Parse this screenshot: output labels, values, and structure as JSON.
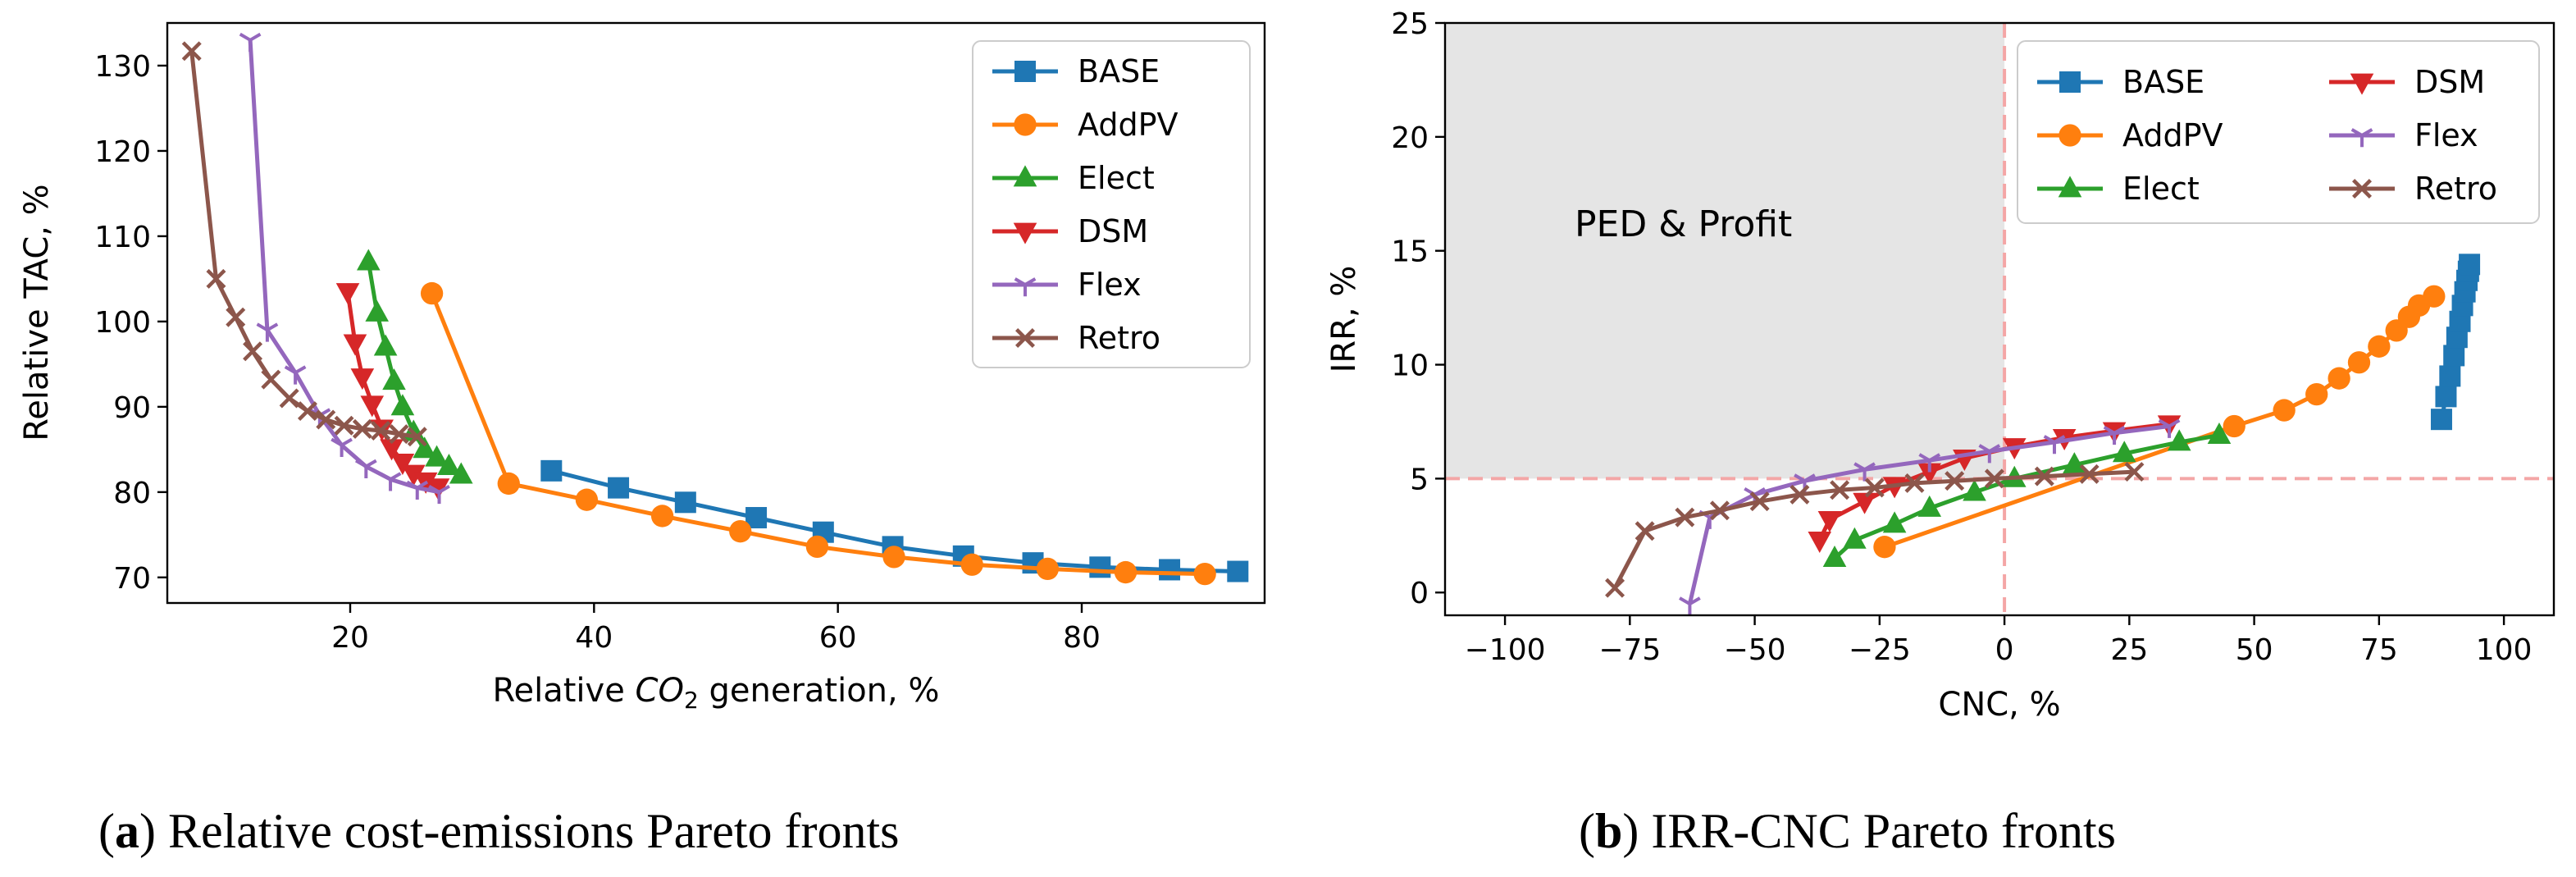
{
  "colors": {
    "BASE": "#1f77b4",
    "AddPV": "#ff7f0e",
    "Elect": "#2ca02c",
    "DSM": "#d62728",
    "Flex": "#9467bd",
    "Retro": "#8c564b",
    "region_fill": "#e5e5e5",
    "threshold_line": "#f4a6a6"
  },
  "chart_data": [
    {
      "id": "a",
      "type": "line",
      "caption_label": "a",
      "caption_text": "Relative cost-emissions Pareto fronts",
      "xlabel_prefix": "Relative ",
      "xlabel_co": "CO",
      "xlabel_sub": "2",
      "xlabel_suffix": " generation, %",
      "ylabel": "Relative TAC, %",
      "xlim": [
        5,
        95
      ],
      "ylim": [
        67,
        135
      ],
      "xticks": [
        20,
        40,
        60,
        80
      ],
      "yticks": [
        70,
        80,
        90,
        100,
        110,
        120,
        130
      ],
      "legend_position": "top-right",
      "series": [
        {
          "name": "BASE",
          "marker": "square",
          "x": [
            36.5,
            42,
            47.5,
            53.3,
            58.8,
            64.5,
            70.3,
            76,
            81.5,
            87.2,
            92.8
          ],
          "y": [
            82.5,
            80.5,
            78.8,
            77,
            75.3,
            73.6,
            72.5,
            71.7,
            71.2,
            70.9,
            70.7
          ]
        },
        {
          "name": "AddPV",
          "marker": "circle",
          "x": [
            26.7,
            33,
            39.4,
            45.6,
            52,
            58.3,
            64.6,
            71,
            77.2,
            83.6,
            90.1
          ],
          "y": [
            103.3,
            81,
            79.1,
            77.2,
            75.4,
            73.6,
            72.4,
            71.5,
            71,
            70.6,
            70.4
          ]
        },
        {
          "name": "Elect",
          "marker": "triangle-up",
          "x": [
            21.5,
            22.2,
            22.9,
            23.6,
            24.3,
            25.2,
            26.1,
            27.1,
            28.1,
            29.1
          ],
          "y": [
            107,
            101,
            97,
            93,
            90,
            87,
            85,
            84,
            83,
            82
          ]
        },
        {
          "name": "DSM",
          "marker": "triangle-down",
          "x": [
            19.8,
            20.4,
            21,
            21.8,
            22.6,
            23.4,
            24.3,
            25.2,
            26.2,
            27.2
          ],
          "y": [
            103.5,
            97.5,
            93.5,
            90.3,
            87.5,
            85.2,
            83.5,
            82.2,
            81.3,
            80.6
          ]
        },
        {
          "name": "Flex",
          "marker": "tri-down",
          "x": [
            11.8,
            13.2,
            15.5,
            17.5,
            19.3,
            21.3,
            23.3,
            25.5,
            27.3
          ],
          "y": [
            133,
            99,
            94,
            89,
            85.5,
            83,
            81.5,
            80.5,
            80
          ]
        },
        {
          "name": "Retro",
          "marker": "x",
          "x": [
            7,
            9,
            10.6,
            12,
            13.5,
            15,
            16.5,
            18,
            19.5,
            21,
            22.5,
            24,
            25.5
          ],
          "y": [
            131.7,
            105,
            100.5,
            96.5,
            93.2,
            91,
            89.5,
            88.5,
            87.8,
            87.4,
            87.2,
            86.8,
            86.5
          ]
        }
      ]
    },
    {
      "id": "b",
      "type": "line",
      "caption_label": "b",
      "caption_text": "IRR-CNC Pareto fronts",
      "xlabel": "CNC, %",
      "ylabel": "IRR, %",
      "xlim": [
        -112,
        110
      ],
      "ylim": [
        -1,
        25
      ],
      "xticks": [
        -100,
        -75,
        -50,
        -25,
        0,
        25,
        50,
        75,
        100
      ],
      "xtick_labels": [
        "−100",
        "−75",
        "−50",
        "−25",
        "0",
        "25",
        "50",
        "75",
        "100"
      ],
      "yticks": [
        0,
        5,
        10,
        15,
        20,
        25
      ],
      "legend_position": "top-right",
      "region": {
        "label": "PED & Profit",
        "x_range": [
          -112,
          0
        ],
        "y_range": [
          5,
          25
        ]
      },
      "threshold_x": 0,
      "threshold_y": 5,
      "series": [
        {
          "name": "BASE",
          "marker": "square",
          "x": [
            87.5,
            88.4,
            89.2,
            90,
            90.6,
            91.2,
            91.7,
            92.2,
            92.6,
            92.9,
            93.1
          ],
          "y": [
            7.6,
            8.6,
            9.5,
            10.4,
            11.2,
            11.9,
            12.6,
            13.2,
            13.7,
            14.1,
            14.4
          ]
        },
        {
          "name": "AddPV",
          "marker": "circle",
          "x": [
            -24,
            46,
            56,
            62.5,
            67,
            71,
            75,
            78.5,
            81,
            83,
            86
          ],
          "y": [
            2,
            7.3,
            8,
            8.7,
            9.4,
            10.1,
            10.8,
            11.5,
            12.1,
            12.6,
            13
          ]
        },
        {
          "name": "Elect",
          "marker": "triangle-up",
          "x": [
            -34,
            -30,
            -22,
            -15,
            -6,
            2,
            14,
            24,
            35,
            43
          ],
          "y": [
            1.5,
            2.3,
            3,
            3.7,
            4.4,
            5,
            5.6,
            6.1,
            6.6,
            6.9
          ]
        },
        {
          "name": "DSM",
          "marker": "triangle-down",
          "x": [
            -37,
            -35,
            -28,
            -22,
            -15,
            -8,
            2,
            12,
            22,
            33
          ],
          "y": [
            2.3,
            3.2,
            4,
            4.7,
            5.3,
            5.9,
            6.4,
            6.8,
            7.1,
            7.4
          ]
        },
        {
          "name": "Flex",
          "marker": "tri-down",
          "x": [
            -63,
            -59,
            -50,
            -40,
            -28,
            -15,
            -3,
            10,
            22,
            33
          ],
          "y": [
            -0.5,
            3.3,
            4.3,
            4.9,
            5.4,
            5.8,
            6.2,
            6.6,
            7,
            7.3
          ]
        },
        {
          "name": "Retro",
          "marker": "x",
          "x": [
            -78,
            -72,
            -64,
            -57,
            -49,
            -41,
            -33,
            -26,
            -18,
            -10,
            -2,
            8,
            17,
            26
          ],
          "y": [
            0.2,
            2.7,
            3.3,
            3.6,
            4,
            4.3,
            4.5,
            4.6,
            4.8,
            4.9,
            5,
            5.1,
            5.2,
            5.3
          ]
        }
      ]
    }
  ]
}
